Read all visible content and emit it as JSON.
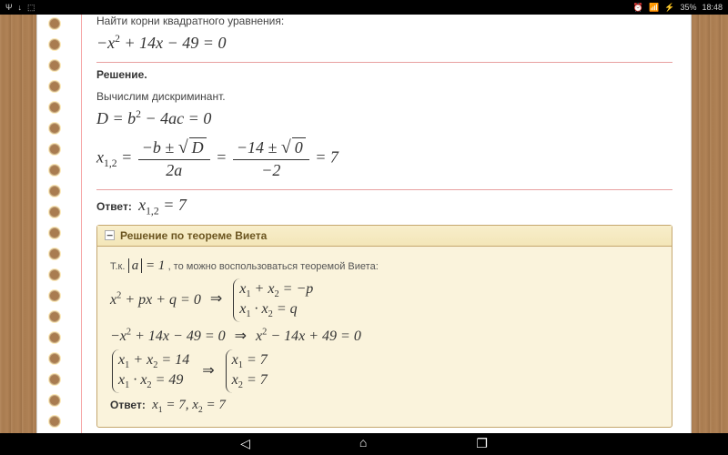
{
  "status": {
    "left_icons": [
      "Ψ",
      "↓",
      "⬚"
    ],
    "right_icons": [
      "⏰",
      "📶",
      "⚡"
    ],
    "battery": "35%",
    "time": "18:48"
  },
  "nav": {
    "back": "◁",
    "home": "⌂",
    "recent": "❐"
  },
  "problem": {
    "prompt": "Найти корни квадратного уравнения:",
    "equation": "−x² + 14x − 49 = 0",
    "solution_label": "Решение.",
    "discriminant_text": "Вычислим дискриминант.",
    "disc_eq": "D = b² − 4ac = 0",
    "x_label": "x",
    "x_sub": "1,2",
    "frac1_num": "−b ± √D",
    "frac1_den": "2a",
    "frac2_num": "−14 ± √0",
    "frac2_den": "−2",
    "result": "7",
    "answer_label": "Ответ:",
    "answer": "x₁,₂ = 7"
  },
  "vieta": {
    "header": "Решение по теореме Виета",
    "collapse": "−",
    "intro_pre": "Т.к.",
    "intro_abs": "|a| = 1",
    "intro_post": ", то можно воспользоваться теоремой Виета:",
    "gen_eq": "x² + px + q = 0",
    "sys1_a": "x₁ + x₂ = −p",
    "sys1_b": "x₁ · x₂ = q",
    "spec_eq": "−x² + 14x − 49 = 0 ⇒ x² − 14x + 49 = 0",
    "sys2_a": "x₁ + x₂ = 14",
    "sys2_b": "x₁ · x₂ = 49",
    "sys3_a": "x₁ = 7",
    "sys3_b": "x₂ = 7",
    "answer_label": "Ответ:",
    "answer": "x₁ = 7, x₂ = 7"
  },
  "colors": {
    "wood": "#a97c50",
    "paper": "#ffffff",
    "margin": "#f5a5a5",
    "vieta_bg": "#faf3dc",
    "vieta_border": "#c5a76f"
  }
}
